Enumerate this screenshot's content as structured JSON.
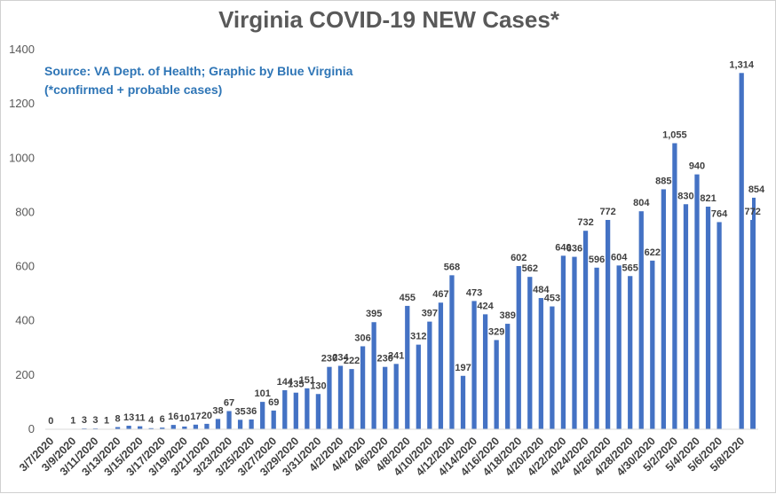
{
  "chart_data": {
    "type": "bar",
    "title": "Virginia COVID-19 NEW Cases*",
    "annotation_lines": [
      "Source: VA Dept. of Health; Graphic by Blue Virginia",
      "(*confirmed + probable cases)"
    ],
    "xlabel": "",
    "ylabel": "",
    "ylim": [
      0,
      1400
    ],
    "yticks": [
      0,
      200,
      400,
      600,
      800,
      1000,
      1200,
      1400
    ],
    "grid": false,
    "legend": "none",
    "categories": [
      "3/7/2020",
      "3/8/2020",
      "3/9/2020",
      "3/10/2020",
      "3/11/2020",
      "3/12/2020",
      "3/13/2020",
      "3/14/2020",
      "3/15/2020",
      "3/16/2020",
      "3/17/2020",
      "3/18/2020",
      "3/19/2020",
      "3/20/2020",
      "3/21/2020",
      "3/22/2020",
      "3/23/2020",
      "3/24/2020",
      "3/25/2020",
      "3/26/2020",
      "3/27/2020",
      "3/28/2020",
      "3/29/2020",
      "3/30/2020",
      "3/31/2020",
      "4/1/2020",
      "4/2/2020",
      "4/3/2020",
      "4/4/2020",
      "4/5/2020",
      "4/6/2020",
      "4/7/2020",
      "4/8/2020",
      "4/9/2020",
      "4/10/2020",
      "4/11/2020",
      "4/12/2020",
      "4/13/2020",
      "4/14/2020",
      "4/15/2020",
      "4/16/2020",
      "4/17/2020",
      "4/18/2020",
      "4/19/2020",
      "4/20/2020",
      "4/21/2020",
      "4/22/2020",
      "4/23/2020",
      "4/24/2020",
      "4/25/2020",
      "4/26/2020",
      "4/27/2020",
      "4/28/2020",
      "4/29/2020",
      "4/30/2020",
      "5/1/2020",
      "5/2/2020",
      "5/3/2020",
      "5/4/2020",
      "5/5/2020",
      "5/6/2020",
      "5/7/2020",
      "5/8/2020",
      "5/9/2020"
    ],
    "values": [
      0,
      null,
      1,
      3,
      3,
      1,
      8,
      13,
      11,
      4,
      6,
      16,
      10,
      17,
      20,
      38,
      67,
      35,
      36,
      101,
      69,
      144,
      135,
      151,
      130,
      230,
      234,
      222,
      306,
      395,
      230,
      241,
      455,
      312,
      397,
      467,
      568,
      197,
      473,
      424,
      329,
      389,
      602,
      562,
      484,
      453,
      640,
      636,
      732,
      596,
      772,
      604,
      565,
      804,
      622,
      885,
      1055,
      830,
      940,
      821,
      764,
      null,
      1314,
      772
    ],
    "value_labels": [
      "0",
      "",
      "1",
      "3",
      "3",
      "1",
      "8",
      "13",
      "11",
      "4",
      "6",
      "16",
      "10",
      "17",
      "20",
      "38",
      "67",
      "35",
      "36",
      "101",
      "69",
      "144",
      "135",
      "151",
      "130",
      "230",
      "234",
      "222",
      "306",
      "395",
      "230",
      "241",
      "455",
      "312",
      "397",
      "467",
      "568",
      "197",
      "473",
      "424",
      "329",
      "389",
      "602",
      "562",
      "484",
      "453",
      "640",
      "636",
      "732",
      "596",
      "772",
      "604",
      "565",
      "804",
      "622",
      "885",
      "1,055",
      "830",
      "940",
      "821",
      "764",
      "",
      "1,314",
      "772"
    ],
    "x_tick_labels_every": 2,
    "bar_color": "#4472c4",
    "extra_bar": {
      "value": 854,
      "label": "854"
    }
  }
}
